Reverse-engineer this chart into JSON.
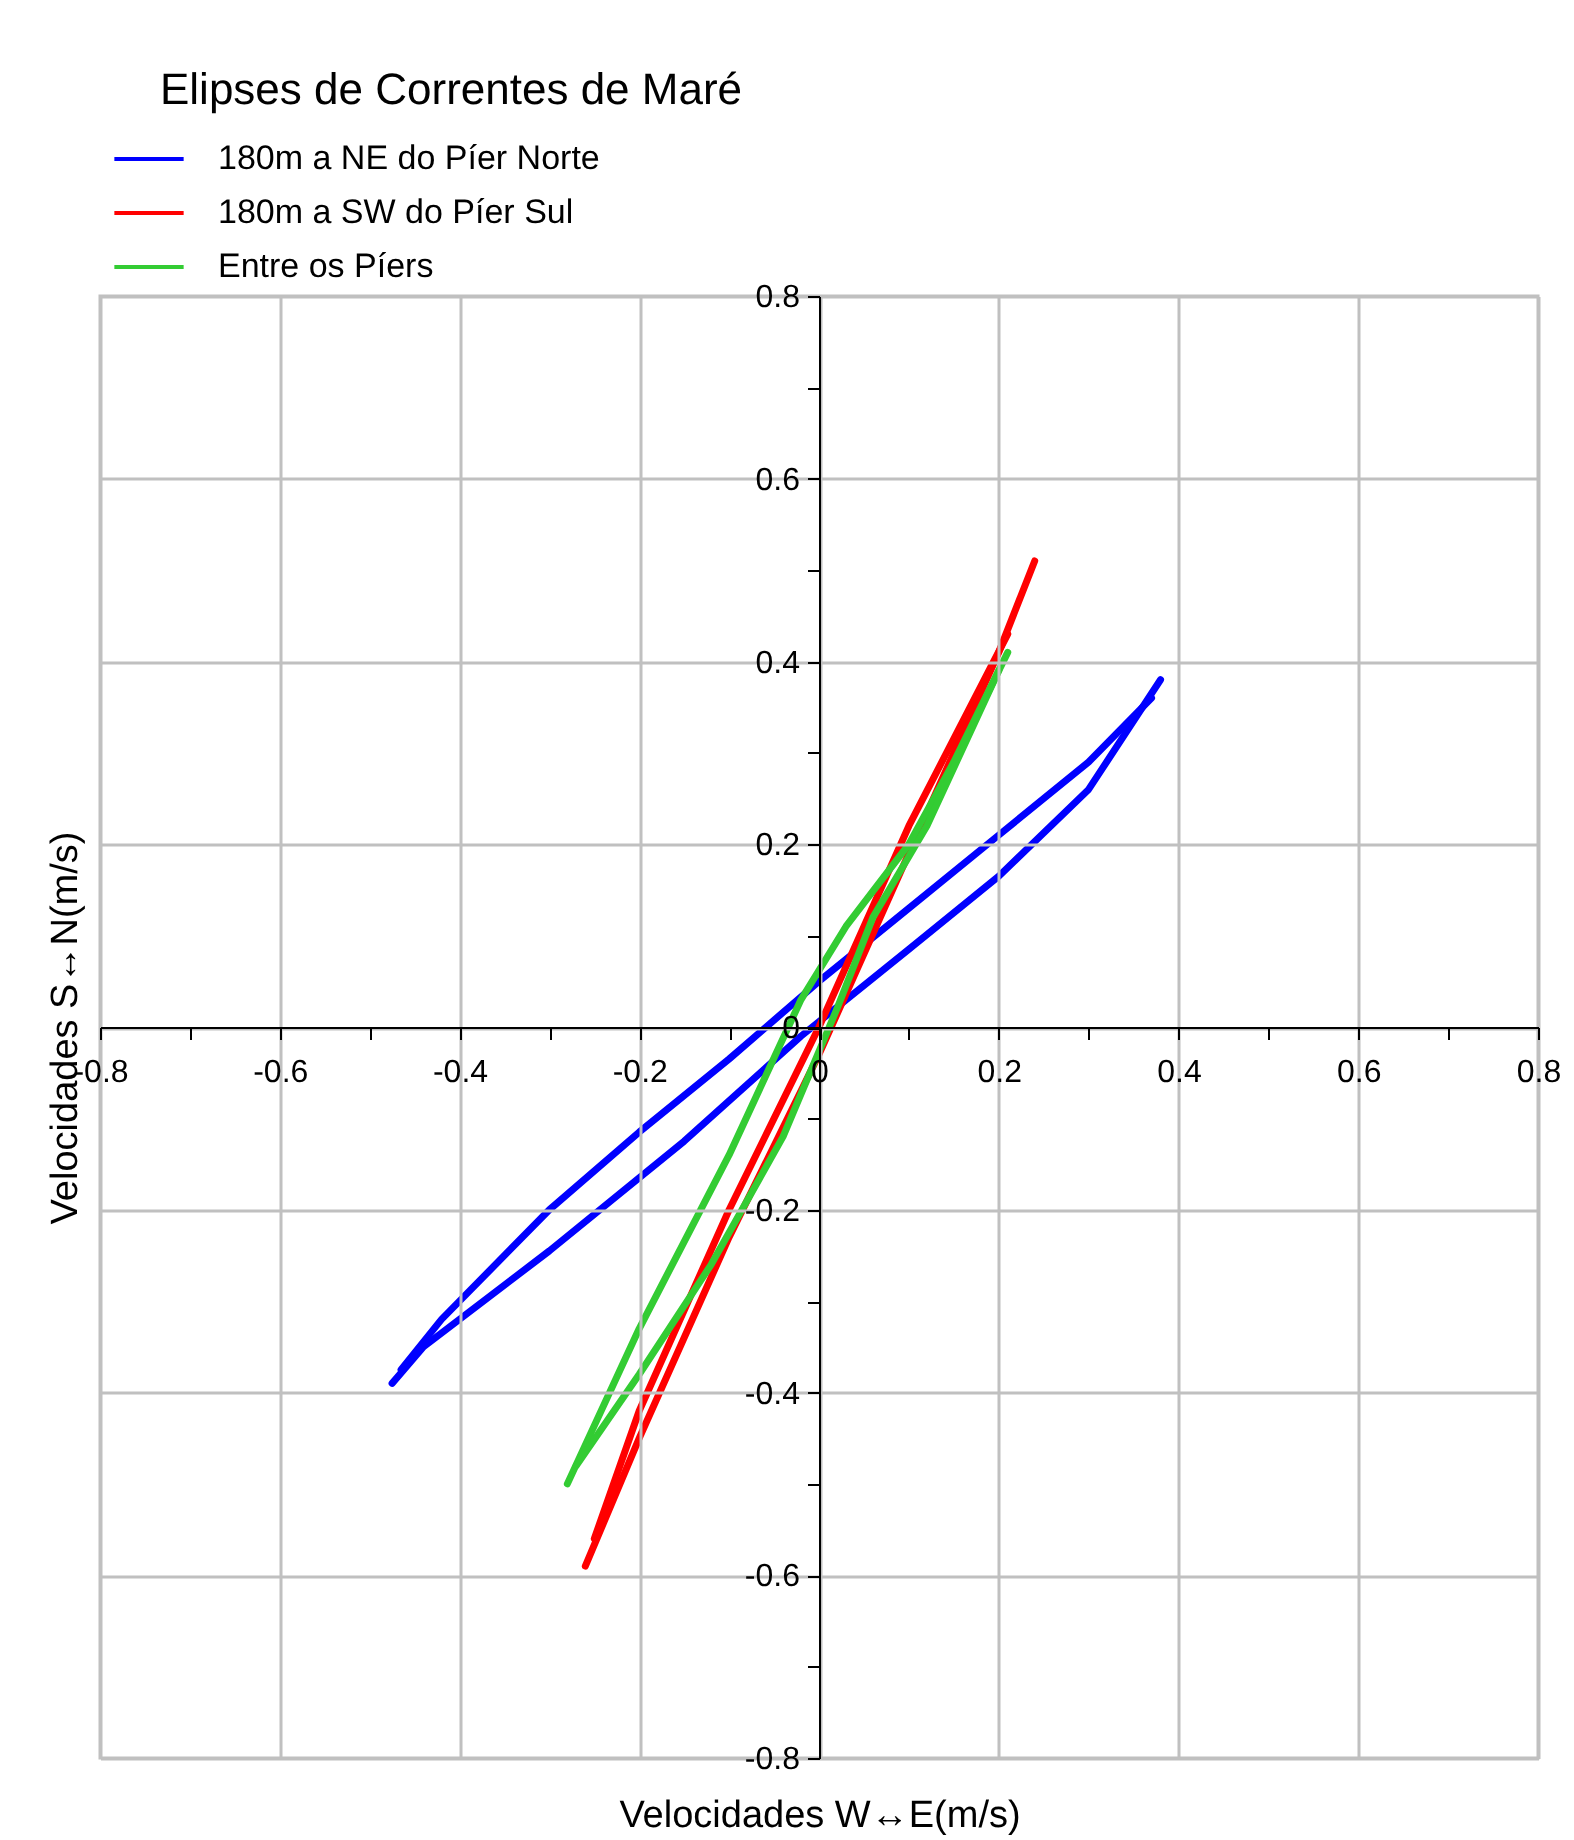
{
  "chart_data": {
    "type": "line",
    "title": "Elipses de Correntes de Maré",
    "xlabel": "Velocidades W↔E(m/s)",
    "ylabel": "Velocidades S↔N(m/s)",
    "xlim": [
      -0.8,
      0.8
    ],
    "ylim": [
      -0.8,
      0.8
    ],
    "xticks": [
      -0.8,
      {
        "value": -0.7,
        "label": null
      },
      -0.6,
      {
        "value": -0.5,
        "label": null
      },
      -0.4,
      {
        "value": -0.3,
        "label": null
      },
      -0.2,
      {
        "value": -0.1,
        "label": null
      },
      0,
      {
        "value": 0.1,
        "label": null
      },
      0.2,
      {
        "value": 0.3,
        "label": null
      },
      0.4,
      {
        "value": 0.5,
        "label": null
      },
      0.6,
      {
        "value": 0.7,
        "label": null
      },
      0.8
    ],
    "yticks": [
      -0.8,
      {
        "value": -0.7,
        "label": null
      },
      -0.6,
      {
        "value": -0.5,
        "label": null
      },
      -0.4,
      {
        "value": -0.3,
        "label": null
      },
      -0.2,
      {
        "value": -0.1,
        "label": null
      },
      0,
      {
        "value": 0.1,
        "label": null
      },
      0.2,
      {
        "value": 0.3,
        "label": null
      },
      0.4,
      {
        "value": 0.5,
        "label": null
      },
      0.6,
      {
        "value": 0.7,
        "label": null
      },
      0.8
    ],
    "grid": true,
    "legend": "top left",
    "marker": "none",
    "line_style": "solid",
    "series": [
      {
        "name": "180m a NE do Píer Norte",
        "color": "#0000ff",
        "x": [
          -0.475,
          -0.44,
          -0.3,
          -0.15,
          -0.02,
          0.1,
          0.2,
          0.3,
          0.38
        ],
        "values": [
          -0.39,
          -0.35,
          -0.245,
          -0.125,
          -0.01,
          0.085,
          0.165,
          0.26,
          0.38
        ]
      },
      {
        "color": "#0000ff",
        "x": [
          -0.465,
          -0.42,
          -0.3,
          -0.2,
          -0.1,
          0.0,
          0.1,
          0.2,
          0.3,
          0.37
        ],
        "values": [
          -0.375,
          -0.32,
          -0.2,
          -0.115,
          -0.035,
          0.05,
          0.13,
          0.21,
          0.29,
          0.36
        ]
      },
      {
        "name": "180m a SW do Píer Sul",
        "color": "#ff0000",
        "x": [
          -0.26,
          -0.2,
          -0.1,
          0.0,
          0.1,
          0.2,
          0.24
        ],
        "values": [
          -0.59,
          -0.45,
          -0.23,
          -0.03,
          0.19,
          0.41,
          0.51
        ]
      },
      {
        "color": "#ff0000",
        "x": [
          -0.25,
          -0.2,
          -0.1,
          0.0,
          0.1,
          0.21
        ],
        "values": [
          -0.56,
          -0.42,
          -0.2,
          0.0,
          0.22,
          0.43
        ]
      },
      {
        "name": "Entre os Píers",
        "color": "#33cc33",
        "x": [
          -0.28,
          -0.2,
          -0.1,
          -0.02,
          0.03,
          0.1,
          0.15,
          0.21
        ],
        "values": [
          -0.5,
          -0.33,
          -0.14,
          0.03,
          0.11,
          0.2,
          0.29,
          0.41
        ]
      },
      {
        "color": "#33cc33",
        "x": [
          -0.27,
          -0.2,
          -0.12,
          -0.04,
          0.02,
          0.06,
          0.12,
          0.2
        ],
        "values": [
          -0.48,
          -0.38,
          -0.26,
          -0.12,
          0.02,
          0.12,
          0.22,
          0.39
        ]
      }
    ]
  }
}
